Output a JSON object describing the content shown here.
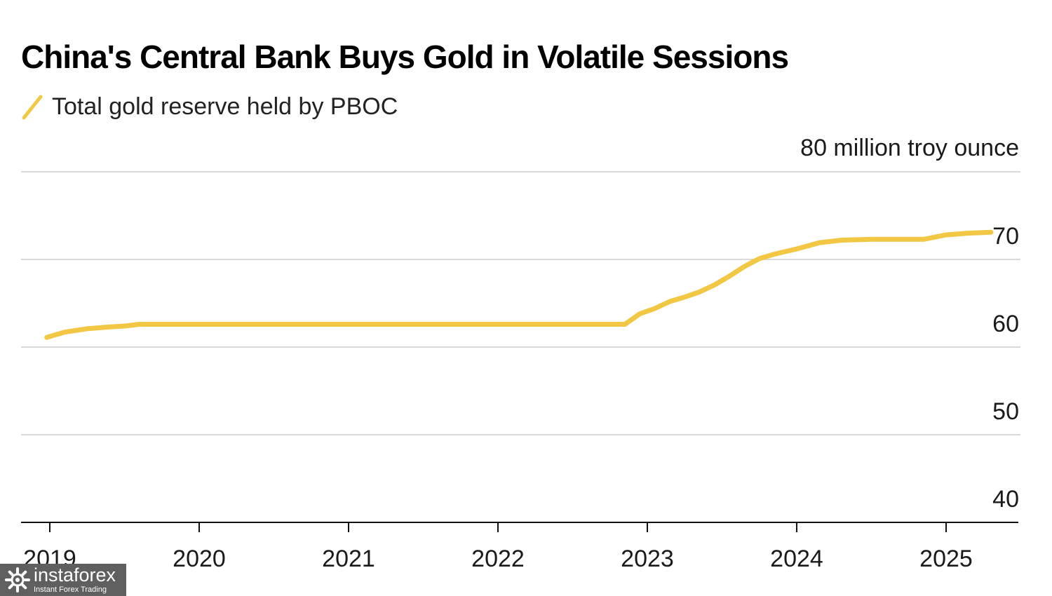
{
  "chart_data": {
    "type": "line",
    "title": "China's Central Bank Buys Gold in Volatile Sessions",
    "subtitle": "",
    "unit_label": "80 million troy ounce",
    "xlabel": "",
    "ylabel": "",
    "ylim": [
      40,
      80
    ],
    "xlim": [
      2019,
      2025.8
    ],
    "y_ticks": [
      40,
      50,
      60,
      70,
      80
    ],
    "y_tick_labels": [
      "40",
      "50",
      "60",
      "70",
      ""
    ],
    "x_ticks": [
      2019,
      2020,
      2021,
      2022,
      2023,
      2024,
      2025
    ],
    "x_tick_labels": [
      "2019",
      "2020",
      "2021",
      "2022",
      "2023",
      "2024",
      "2025"
    ],
    "grid": true,
    "legend_position": "top-left",
    "color": "#f2c744",
    "series": [
      {
        "name": "Total gold reserve held by PBOC",
        "x": [
          2018.98,
          2019.1,
          2019.25,
          2019.4,
          2019.5,
          2019.6,
          2022.85,
          2022.95,
          2023.05,
          2023.15,
          2023.25,
          2023.35,
          2023.45,
          2023.55,
          2023.65,
          2023.75,
          2023.85,
          2024.0,
          2024.15,
          2024.3,
          2024.5,
          2024.85,
          2025.0,
          2025.15,
          2025.3
        ],
        "y": [
          61.1,
          61.7,
          62.1,
          62.3,
          62.4,
          62.6,
          62.6,
          63.8,
          64.4,
          65.2,
          65.7,
          66.3,
          67.1,
          68.1,
          69.2,
          70.1,
          70.6,
          71.2,
          71.9,
          72.2,
          72.3,
          72.3,
          72.8,
          73.0,
          73.1
        ]
      }
    ]
  },
  "watermark": {
    "brand": "instaforex",
    "tagline": "Instant Forex Trading"
  }
}
